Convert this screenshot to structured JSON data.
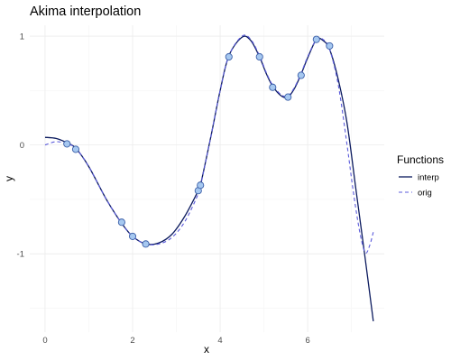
{
  "chart_data": {
    "type": "line",
    "title": "Akima interpolation",
    "xlabel": "x",
    "ylabel": "y",
    "xlim": [
      -0.35,
      7.75
    ],
    "ylim": [
      -1.72,
      1.1
    ],
    "x_ticks": [
      0,
      2,
      4,
      6
    ],
    "x_tick_labels": [
      "0",
      "2",
      "4",
      "6"
    ],
    "y_ticks": [
      -1,
      0,
      1
    ],
    "y_tick_labels": [
      "-1",
      "0",
      "1"
    ],
    "grid": true,
    "legend": {
      "title": "Functions",
      "placement": "right",
      "entries": [
        "interp",
        "orig"
      ]
    },
    "series": [
      {
        "name": "interp",
        "style": "solid",
        "color": "#0b1a5e",
        "x": [
          0,
          0.25,
          0.5,
          0.7,
          1.0,
          1.4,
          1.75,
          2.0,
          2.3,
          2.6,
          2.9,
          3.2,
          3.5,
          3.55,
          3.8,
          4.0,
          4.2,
          4.5,
          4.7,
          4.9,
          5.05,
          5.2,
          5.4,
          5.55,
          5.7,
          5.85,
          6.0,
          6.2,
          6.35,
          6.5,
          6.7,
          6.9,
          7.1,
          7.3,
          7.5
        ],
        "y": [
          0.07,
          0.06,
          0.02,
          -0.03,
          -0.2,
          -0.5,
          -0.72,
          -0.84,
          -0.91,
          -0.9,
          -0.82,
          -0.65,
          -0.42,
          -0.37,
          0.1,
          0.5,
          0.82,
          0.99,
          0.96,
          0.81,
          0.66,
          0.54,
          0.45,
          0.44,
          0.52,
          0.65,
          0.8,
          0.97,
          0.96,
          0.88,
          0.6,
          0.2,
          -0.4,
          -1.0,
          -1.62
        ]
      },
      {
        "name": "orig",
        "style": "dashed",
        "color": "#5b5bdc",
        "x": [
          0,
          0.25,
          0.5,
          0.7,
          1.0,
          1.4,
          1.75,
          2.0,
          2.3,
          2.6,
          2.9,
          3.2,
          3.5,
          3.55,
          3.8,
          4.0,
          4.2,
          4.5,
          4.7,
          4.9,
          5.05,
          5.2,
          5.4,
          5.55,
          5.7,
          5.85,
          6.0,
          6.2,
          6.35,
          6.5,
          6.7,
          6.9,
          7.05,
          7.2,
          7.32,
          7.42,
          7.5
        ],
        "y": [
          0.0,
          0.03,
          0.01,
          -0.03,
          -0.2,
          -0.5,
          -0.72,
          -0.84,
          -0.91,
          -0.91,
          -0.85,
          -0.7,
          -0.45,
          -0.38,
          0.1,
          0.5,
          0.82,
          1.0,
          0.97,
          0.82,
          0.67,
          0.55,
          0.46,
          0.45,
          0.53,
          0.66,
          0.81,
          0.97,
          0.97,
          0.88,
          0.55,
          0.0,
          -0.45,
          -0.82,
          -0.99,
          -0.92,
          -0.8
        ]
      }
    ],
    "points": {
      "fill": "#a6c8f0",
      "stroke": "#3b5fa8",
      "x": [
        0.5,
        0.7,
        1.75,
        2.0,
        2.3,
        3.5,
        3.55,
        4.2,
        4.9,
        5.2,
        5.55,
        5.85,
        6.2,
        6.5
      ],
      "y": [
        0.01,
        -0.04,
        -0.71,
        -0.84,
        -0.91,
        -0.42,
        -0.37,
        0.81,
        0.81,
        0.53,
        0.44,
        0.64,
        0.97,
        0.91
      ]
    }
  }
}
